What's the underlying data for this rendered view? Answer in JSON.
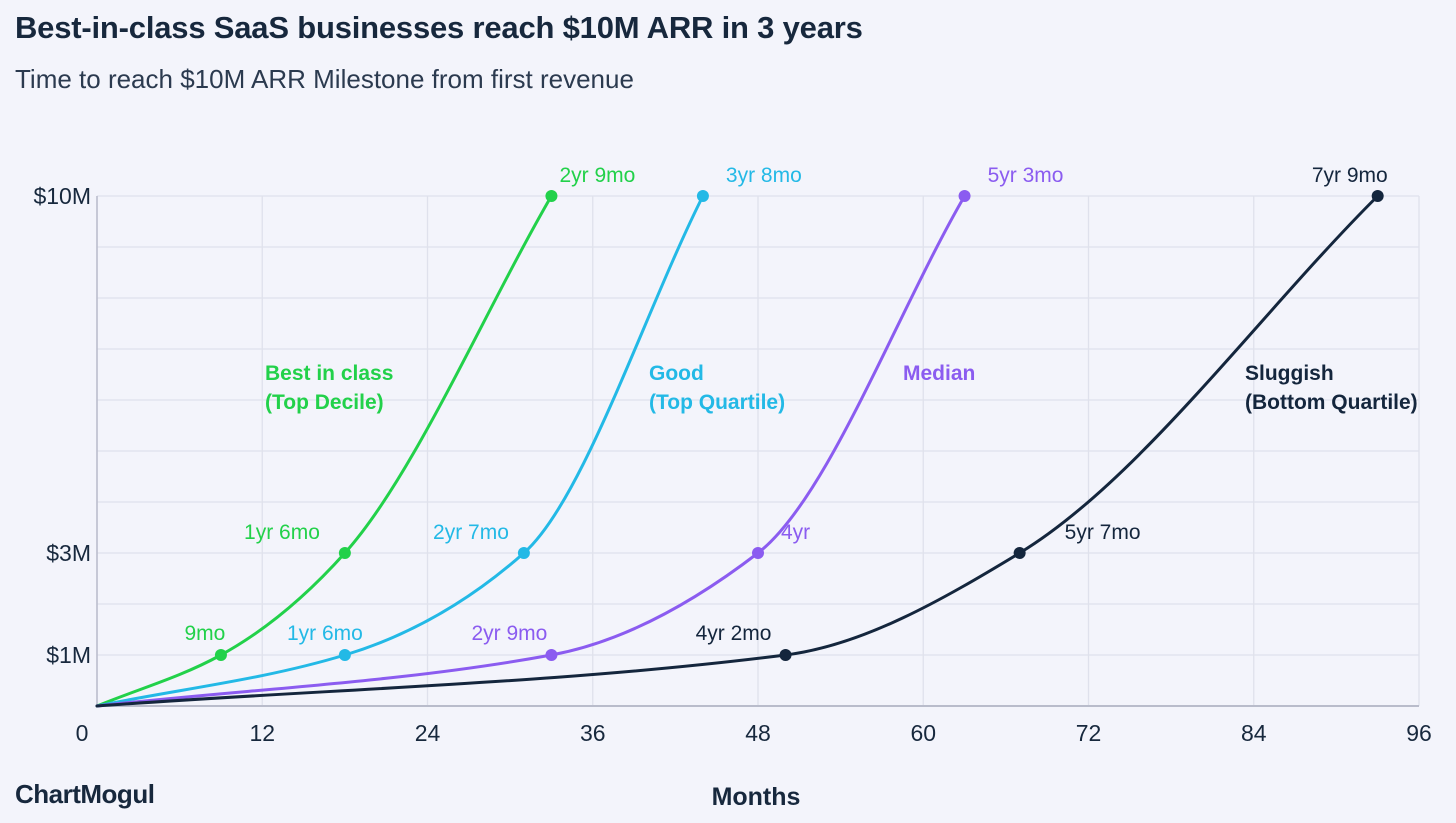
{
  "title": "Best-in-class SaaS businesses reach $10M ARR in 3 years",
  "subtitle": "Time to reach $10M ARR Milestone from first revenue",
  "brand": "ChartMogul",
  "chart_data": {
    "type": "line",
    "title": "Best-in-class SaaS businesses reach $10M ARR in 3 years",
    "subtitle": "Time to reach $10M ARR Milestone from first revenue",
    "xlabel": "Months",
    "ylabel": "",
    "xlim": [
      0,
      96
    ],
    "x_ticks": [
      0,
      12,
      24,
      36,
      48,
      60,
      72,
      84,
      96
    ],
    "y_ticks": [
      {
        "value": 1,
        "label": "$1M"
      },
      {
        "value": 3,
        "label": "$3M"
      },
      {
        "value": 10,
        "label": "$10M"
      }
    ],
    "y_unit": "$M ARR",
    "grid": true,
    "legend": "inline labels",
    "series": [
      {
        "name": "Best in class (Top Decile)",
        "name_lines": [
          "Best in class",
          "(Top Decile)"
        ],
        "color": "#22d14a",
        "points": [
          {
            "x": 0,
            "y": 0,
            "label": ""
          },
          {
            "x": 9,
            "y": 1,
            "label": "9mo"
          },
          {
            "x": 18,
            "y": 3,
            "label": "1yr 6mo"
          },
          {
            "x": 33,
            "y": 10,
            "label": "2yr 9mo"
          }
        ]
      },
      {
        "name": "Good (Top Quartile)",
        "name_lines": [
          "Good",
          "(Top Quartile)"
        ],
        "color": "#23b9e6",
        "points": [
          {
            "x": 0,
            "y": 0,
            "label": ""
          },
          {
            "x": 18,
            "y": 1,
            "label": "1yr 6mo"
          },
          {
            "x": 31,
            "y": 3,
            "label": "2yr 7mo"
          },
          {
            "x": 44,
            "y": 10,
            "label": "3yr 8mo"
          }
        ]
      },
      {
        "name": "Median",
        "name_lines": [
          "Median"
        ],
        "color": "#8b5cf0",
        "points": [
          {
            "x": 0,
            "y": 0,
            "label": ""
          },
          {
            "x": 33,
            "y": 1,
            "label": "2yr 9mo"
          },
          {
            "x": 48,
            "y": 3,
            "label": "4yr"
          },
          {
            "x": 63,
            "y": 10,
            "label": "5yr 3mo"
          }
        ]
      },
      {
        "name": "Sluggish (Bottom Quartile)",
        "name_lines": [
          "Sluggish",
          "(Bottom Quartile)"
        ],
        "color": "#14263d",
        "points": [
          {
            "x": 0,
            "y": 0,
            "label": ""
          },
          {
            "x": 50,
            "y": 1,
            "label": "4yr 2mo"
          },
          {
            "x": 67,
            "y": 3,
            "label": "5yr 7mo"
          },
          {
            "x": 93,
            "y": 10,
            "label": "7yr 9mo"
          }
        ]
      }
    ]
  }
}
